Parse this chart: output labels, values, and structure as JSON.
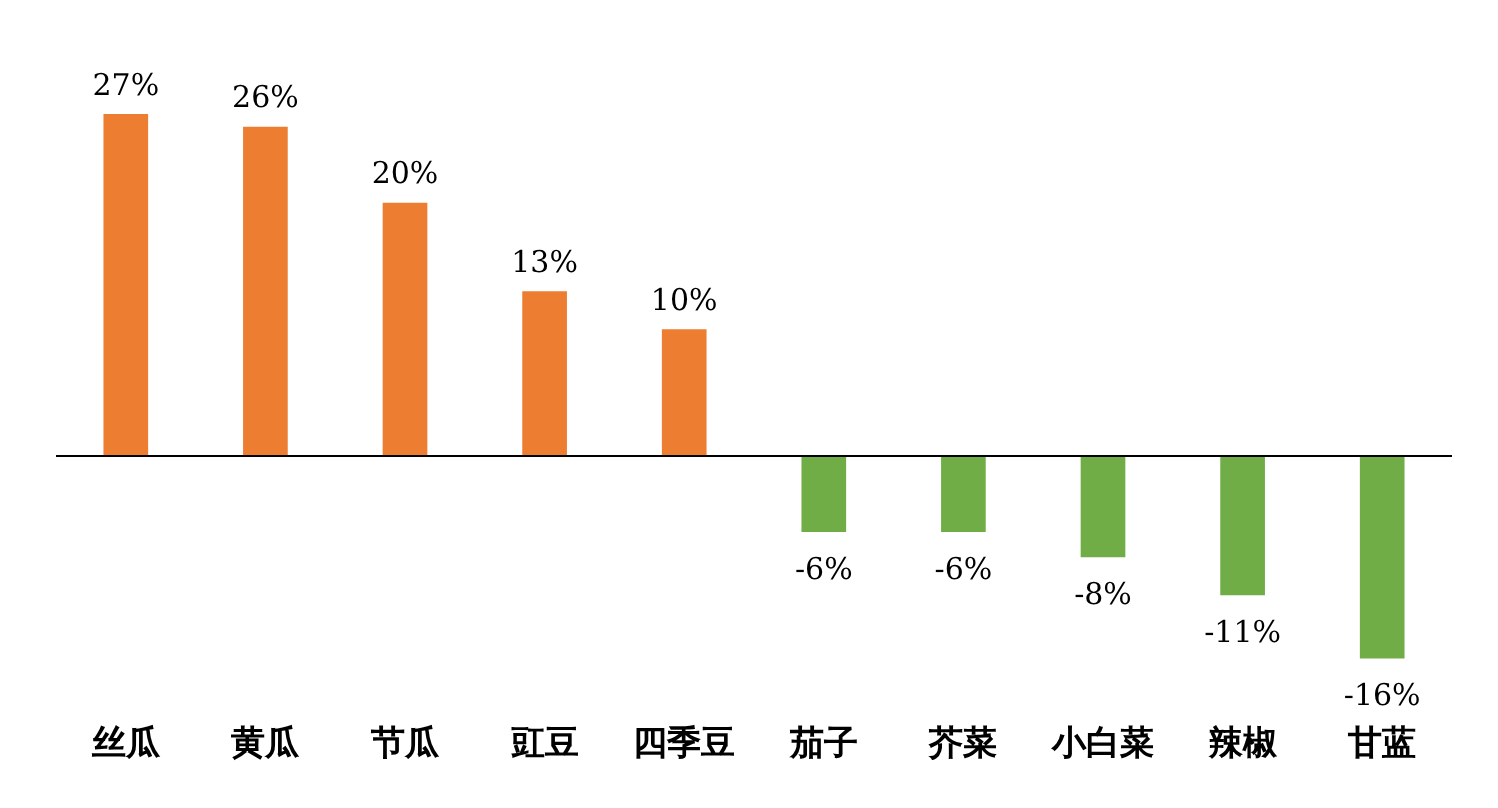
{
  "chart_data": {
    "type": "bar",
    "categories": [
      "丝瓜",
      "黄瓜",
      "节瓜",
      "豇豆",
      "四季豆",
      "茄子",
      "芥菜",
      "小白菜",
      "辣椒",
      "甘蓝"
    ],
    "values": [
      27,
      26,
      20,
      13,
      10,
      -6,
      -6,
      -8,
      -11,
      -16
    ],
    "colors": [
      "#ed7d31",
      "#ed7d31",
      "#ed7d31",
      "#ed7d31",
      "#ed7d31",
      "#70ad47",
      "#70ad47",
      "#70ad47",
      "#70ad47",
      "#70ad47"
    ],
    "value_labels": [
      "27%",
      "26%",
      "20%",
      "13%",
      "10%",
      "-6%",
      "-6%",
      "-8%",
      "-11%",
      "-16%"
    ],
    "grid": false,
    "legend": false
  }
}
